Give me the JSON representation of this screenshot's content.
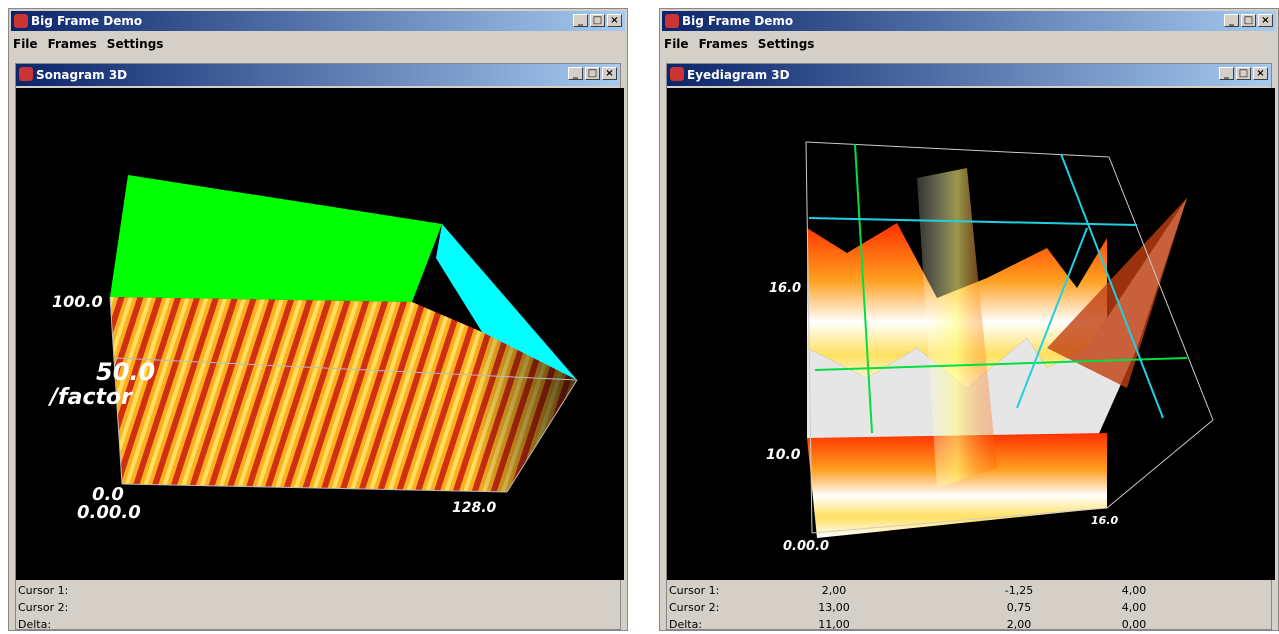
{
  "windows": [
    {
      "title": "Big Frame Demo",
      "menu": [
        "File",
        "Frames",
        "Settings"
      ],
      "frame": {
        "title": "Sonagram 3D",
        "axis_labels": [
          "100.0",
          "50.0",
          "/factor",
          "0.0",
          "0.00.0",
          "128.0"
        ],
        "status": [
          {
            "label": "Cursor 1:",
            "values": []
          },
          {
            "label": "Cursor 2:",
            "values": []
          },
          {
            "label": "Delta:",
            "values": []
          }
        ]
      }
    },
    {
      "title": "Big Frame Demo",
      "menu": [
        "File",
        "Frames",
        "Settings"
      ],
      "frame": {
        "title": "Eyediagram 3D",
        "axis_labels": [
          "16.0",
          "10.0",
          "16.0",
          "0.00.0"
        ],
        "status": [
          {
            "label": "Cursor 1:",
            "values": [
              "2,00",
              "-1,25",
              "4,00"
            ]
          },
          {
            "label": "Cursor 2:",
            "values": [
              "13,00",
              "0,75",
              "4,00"
            ]
          },
          {
            "label": "Delta:",
            "values": [
              "11,00",
              "2,00",
              "0,00"
            ]
          }
        ]
      }
    }
  ]
}
